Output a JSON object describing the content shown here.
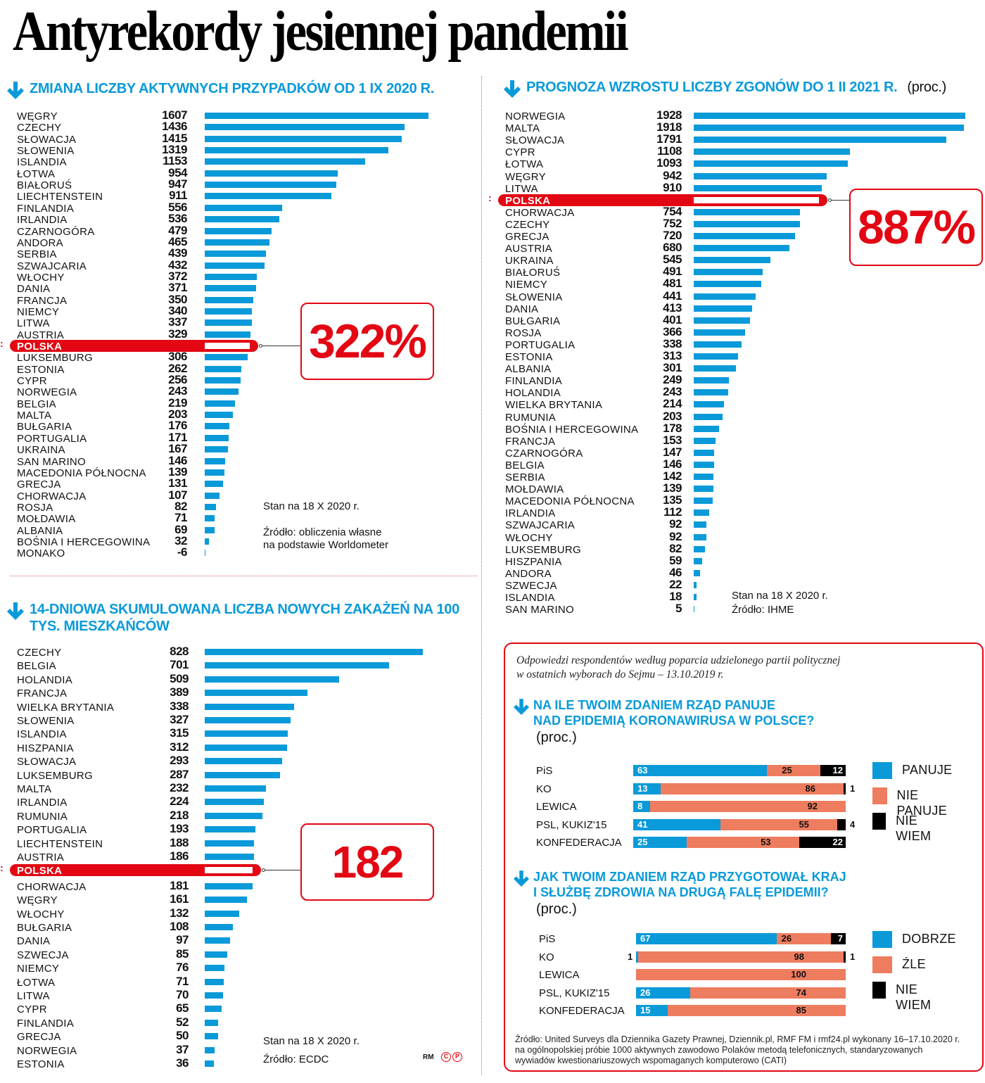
{
  "title": "Antyrekordy jesiennej pandemii",
  "colors": {
    "bar": "#0a9ad9",
    "highlight": "#e30613",
    "neg": "#ee7d5f",
    "dontknow": "#000000"
  },
  "chart_data": [
    {
      "type": "bar",
      "orientation": "horizontal",
      "title": "ZMIANA LICZBY AKTYWNYCH PRZYPADKÓW OD 1 IX 2020 R.",
      "categories": [
        "WĘGRY",
        "CZECHY",
        "SŁOWACJA",
        "SŁOWENIA",
        "ISLANDIA",
        "ŁOTWA",
        "BIAŁORUŚ",
        "LIECHTENSTEIN",
        "FINLANDIA",
        "IRLANDIA",
        "CZARNOGÓRA",
        "ANDORA",
        "SERBIA",
        "SZWAJCARIA",
        "WŁOCHY",
        "DANIA",
        "FRANCJA",
        "NIEMCY",
        "LITWA",
        "AUSTRIA",
        "POLSKA",
        "LUKSEMBURG",
        "ESTONIA",
        "CYPR",
        "NORWEGIA",
        "BELGIA",
        "MALTA",
        "BUŁGARIA",
        "PORTUGALIA",
        "UKRAINA",
        "SAN MARINO",
        "MACEDONIA PÓŁNOCNA",
        "GRECJA",
        "CHORWACJA",
        "ROSJA",
        "MOŁDAWIA",
        "ALBANIA",
        "BOŚNIA I HERCEGOWINA",
        "MONAKO"
      ],
      "values": [
        1607,
        1436,
        1415,
        1319,
        1153,
        954,
        947,
        911,
        556,
        536,
        479,
        465,
        439,
        432,
        372,
        371,
        350,
        340,
        337,
        329,
        322,
        306,
        262,
        256,
        243,
        219,
        203,
        176,
        171,
        167,
        146,
        139,
        131,
        107,
        82,
        71,
        69,
        32,
        -6
      ],
      "highlight": {
        "category": "POLSKA",
        "label": "322%"
      },
      "notes": [
        "Stan na 18 X 2020 r.",
        "Źródło: obliczenia własne",
        "na podstawie Worldometer"
      ]
    },
    {
      "type": "bar",
      "orientation": "horizontal",
      "title": "PROGNOZA WZROSTU LICZBY ZGONÓW DO 1 II 2021 R.",
      "unit": "(proc.)",
      "categories": [
        "NORWEGIA",
        "MALTA",
        "SŁOWACJA",
        "CYPR",
        "ŁOTWA",
        "WĘGRY",
        "LITWA",
        "POLSKA",
        "CHORWACJA",
        "CZECHY",
        "GRECJA",
        "AUSTRIA",
        "UKRAINA",
        "BIAŁORUŚ",
        "NIEMCY",
        "SŁOWENIA",
        "DANIA",
        "BUŁGARIA",
        "ROSJA",
        "PORTUGALIA",
        "ESTONIA",
        "ALBANIA",
        "FINLANDIA",
        "HOLANDIA",
        "WIELKA BRYTANIA",
        "RUMUNIA",
        "BOŚNIA I HERCEGOWINA",
        "FRANCJA",
        "CZARNOGÓRA",
        "BELGIA",
        "SERBIA",
        "MOŁDAWIA",
        "MACEDONIA PÓŁNOCNA",
        "IRLANDIA",
        "SZWAJCARIA",
        "WŁOCHY",
        "LUKSEMBURG",
        "HISZPANIA",
        "ANDORA",
        "SZWECJA",
        "ISLANDIA",
        "SAN MARINO"
      ],
      "values": [
        1928,
        1918,
        1791,
        1108,
        1093,
        942,
        910,
        887,
        754,
        752,
        720,
        680,
        545,
        491,
        481,
        441,
        413,
        401,
        366,
        338,
        313,
        301,
        249,
        243,
        214,
        203,
        178,
        153,
        147,
        146,
        142,
        139,
        135,
        112,
        92,
        92,
        82,
        59,
        46,
        22,
        18,
        5
      ],
      "highlight": {
        "category": "POLSKA",
        "label": "887%"
      },
      "notes": [
        "Stan na 18 X 2020 r.",
        "Źródło: IHME"
      ]
    },
    {
      "type": "bar",
      "orientation": "horizontal",
      "title": "14-DNIOWA SKUMULOWANA LICZBA NOWYCH ZAKAŻEŃ NA 100 TYS. MIESZKAŃCÓW",
      "categories": [
        "CZECHY",
        "BELGIA",
        "HOLANDIA",
        "FRANCJA",
        "WIELKA BRYTANIA",
        "SŁOWENIA",
        "ISLANDIA",
        "HISZPANIA",
        "SŁOWACJA",
        "LUKSEMBURG",
        "MALTA",
        "IRLANDIA",
        "RUMUNIA",
        "PORTUGALIA",
        "LIECHTENSTEIN",
        "AUSTRIA",
        "POLSKA",
        "CHORWACJA",
        "WĘGRY",
        "WŁOCHY",
        "BUŁGARIA",
        "DANIA",
        "SZWECJA",
        "NIEMCY",
        "ŁOTWA",
        "LITWA",
        "CYPR",
        "FINLANDIA",
        "GRECJA",
        "NORWEGIA",
        "ESTONIA"
      ],
      "values": [
        828,
        701,
        509,
        389,
        338,
        327,
        315,
        312,
        293,
        287,
        232,
        224,
        218,
        193,
        188,
        186,
        182,
        181,
        161,
        132,
        108,
        97,
        85,
        76,
        71,
        70,
        65,
        52,
        50,
        37,
        36
      ],
      "highlight": {
        "category": "POLSKA",
        "label": "182"
      },
      "notes": [
        "Stan na 18 X 2020 r.",
        "Źródło: ECDC"
      ]
    },
    {
      "type": "bar",
      "orientation": "horizontal",
      "stacked": true,
      "title": "NA ILE TWOIM ZDANIEM RZĄD PANUJE NAD EPIDEMIĄ KORONAWIRUSA W POLSCE?",
      "unit": "(proc.)",
      "categories": [
        "PiS",
        "KO",
        "LEWICA",
        "PSL, KUKIZ'15",
        "KONFEDERACJA"
      ],
      "series": [
        {
          "name": "PANUJE",
          "values": [
            63,
            13,
            8,
            41,
            25
          ]
        },
        {
          "name": "NIE PANUJE",
          "values": [
            25,
            86,
            92,
            55,
            53
          ]
        },
        {
          "name": "NIE WIEM",
          "values": [
            12,
            1,
            0,
            4,
            22
          ]
        }
      ]
    },
    {
      "type": "bar",
      "orientation": "horizontal",
      "stacked": true,
      "title": "JAK TWOIM ZDANIEM RZĄD PRZYGOTOWAŁ KRAJ I SŁUŻBĘ ZDROWIA NA DRUGĄ FALĘ EPIDEMII?",
      "unit": "(proc.)",
      "categories": [
        "PiS",
        "KO",
        "LEWICA",
        "PSL, KUKIZ'15",
        "KONFEDERACJA"
      ],
      "series": [
        {
          "name": "DOBRZE",
          "values": [
            67,
            1,
            0,
            26,
            15
          ]
        },
        {
          "name": "ŹLE",
          "values": [
            26,
            98,
            100,
            74,
            85
          ]
        },
        {
          "name": "NIE WIEM",
          "values": [
            7,
            1,
            0,
            0,
            0
          ]
        }
      ]
    }
  ],
  "survey": {
    "intro_line1": "Odpowiedzi respondentów według poparcia udzielonego partii politycznej",
    "intro_line2": "w ostatnich wyborach do Sejmu – 13.10.2019 r.",
    "q1": {
      "line1": "NA ILE TWOIM ZDANIEM RZĄD PANUJE",
      "line2": "NAD EPIDEMIĄ KORONAWIRUSA W POLSCE?",
      "proc": "(proc.)"
    },
    "q2": {
      "line1": "JAK TWOIM ZDANIEM RZĄD PRZYGOTOWAŁ KRAJ",
      "line2": "I SŁUŻBĘ ZDROWIA NA DRUGĄ FALĘ EPIDEMII?",
      "proc": "(proc.)"
    },
    "source_line1": "Źródło: United Surveys dla Dziennika Gazety Prawnej, Dziennik.pl, RMF FM i rmf24.pl wykonany 16–17.10.2020 r.",
    "source_line2": "na ogólnopolskiej próbie 1000 aktywnych zawodowo Polaków metodą telefonicznych, standaryzowanych",
    "source_line3": "wywiadów kwestionariuszowych wspomaganych komputerowo (CATI)"
  },
  "footer": {
    "author": "RM",
    "copyright": "C",
    "protected": "P"
  }
}
